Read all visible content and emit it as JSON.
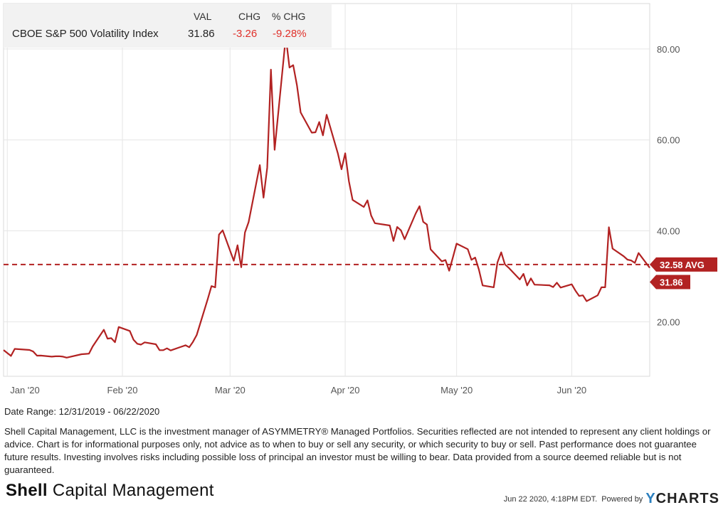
{
  "legend": {
    "headers": {
      "val": "VAL",
      "chg": "CHG",
      "pct_chg": "% CHG"
    },
    "name": "CBOE S&P 500 Volatility Index",
    "val": "31.86",
    "chg": "-3.26",
    "pct_chg": "-9.28%"
  },
  "chart_data": {
    "type": "line",
    "title": "",
    "xlabel": "",
    "ylabel": "",
    "x_ticks": [
      "Jan '20",
      "Feb '20",
      "Mar '20",
      "Apr '20",
      "May '20",
      "Jun '20"
    ],
    "y_ticks": [
      "20.00",
      "40.00",
      "60.00",
      "80.00"
    ],
    "ylim": [
      8,
      90
    ],
    "xlim": [
      "2019-12-31",
      "2020-06-22"
    ],
    "grid": true,
    "average": {
      "value": 32.58,
      "label": "32.58 AVG"
    },
    "last": {
      "value": 31.86,
      "label": "31.86"
    },
    "series": [
      {
        "name": "CBOE S&P 500 Volatility Index",
        "x": [
          "2019-12-31",
          "2020-01-02",
          "2020-01-03",
          "2020-01-06",
          "2020-01-07",
          "2020-01-08",
          "2020-01-09",
          "2020-01-10",
          "2020-01-13",
          "2020-01-14",
          "2020-01-15",
          "2020-01-16",
          "2020-01-17",
          "2020-01-21",
          "2020-01-22",
          "2020-01-23",
          "2020-01-24",
          "2020-01-27",
          "2020-01-28",
          "2020-01-29",
          "2020-01-30",
          "2020-01-31",
          "2020-02-03",
          "2020-02-04",
          "2020-02-05",
          "2020-02-06",
          "2020-02-07",
          "2020-02-10",
          "2020-02-11",
          "2020-02-12",
          "2020-02-13",
          "2020-02-14",
          "2020-02-18",
          "2020-02-19",
          "2020-02-20",
          "2020-02-21",
          "2020-02-24",
          "2020-02-25",
          "2020-02-26",
          "2020-02-27",
          "2020-02-28",
          "2020-03-02",
          "2020-03-03",
          "2020-03-04",
          "2020-03-05",
          "2020-03-06",
          "2020-03-09",
          "2020-03-10",
          "2020-03-11",
          "2020-03-12",
          "2020-03-13",
          "2020-03-16",
          "2020-03-17",
          "2020-03-18",
          "2020-03-19",
          "2020-03-20",
          "2020-03-23",
          "2020-03-24",
          "2020-03-25",
          "2020-03-26",
          "2020-03-27",
          "2020-03-30",
          "2020-03-31",
          "2020-04-01",
          "2020-04-02",
          "2020-04-03",
          "2020-04-06",
          "2020-04-07",
          "2020-04-08",
          "2020-04-09",
          "2020-04-13",
          "2020-04-14",
          "2020-04-15",
          "2020-04-16",
          "2020-04-17",
          "2020-04-20",
          "2020-04-21",
          "2020-04-22",
          "2020-04-23",
          "2020-04-24",
          "2020-04-27",
          "2020-04-28",
          "2020-04-29",
          "2020-04-30",
          "2020-05-01",
          "2020-05-04",
          "2020-05-05",
          "2020-05-06",
          "2020-05-07",
          "2020-05-08",
          "2020-05-11",
          "2020-05-12",
          "2020-05-13",
          "2020-05-14",
          "2020-05-15",
          "2020-05-18",
          "2020-05-19",
          "2020-05-20",
          "2020-05-21",
          "2020-05-22",
          "2020-05-26",
          "2020-05-27",
          "2020-05-28",
          "2020-05-29",
          "2020-06-01",
          "2020-06-02",
          "2020-06-03",
          "2020-06-04",
          "2020-06-05",
          "2020-06-08",
          "2020-06-09",
          "2020-06-10",
          "2020-06-11",
          "2020-06-12",
          "2020-06-15",
          "2020-06-16",
          "2020-06-17",
          "2020-06-18",
          "2020-06-19",
          "2020-06-22"
        ],
        "y": [
          13.78,
          12.47,
          14.02,
          13.85,
          13.79,
          13.45,
          12.54,
          12.56,
          12.32,
          12.39,
          12.42,
          12.32,
          12.1,
          12.85,
          12.91,
          12.98,
          14.56,
          18.23,
          16.28,
          16.39,
          15.49,
          18.84,
          17.97,
          16.05,
          15.15,
          14.96,
          15.47,
          15.04,
          13.74,
          13.74,
          14.15,
          13.68,
          14.83,
          14.38,
          15.56,
          17.08,
          25.03,
          27.85,
          27.56,
          39.16,
          40.11,
          33.42,
          36.82,
          31.99,
          39.62,
          41.94,
          54.46,
          47.3,
          53.9,
          75.47,
          57.83,
          82.69,
          75.91,
          76.45,
          72.0,
          66.04,
          61.59,
          61.67,
          63.95,
          61.0,
          65.54,
          57.08,
          53.54,
          57.06,
          50.91,
          46.8,
          45.24,
          46.7,
          43.35,
          41.67,
          41.17,
          37.76,
          40.84,
          40.11,
          38.15,
          43.83,
          45.41,
          41.98,
          41.38,
          35.93,
          33.29,
          33.57,
          31.23,
          34.15,
          37.19,
          35.97,
          33.61,
          34.12,
          31.44,
          27.98,
          27.57,
          33.04,
          35.28,
          32.61,
          31.89,
          29.3,
          30.53,
          27.99,
          29.53,
          28.16,
          28.01,
          27.62,
          28.59,
          27.51,
          28.23,
          26.84,
          25.66,
          25.81,
          24.52,
          25.81,
          27.57,
          27.57,
          40.79,
          36.09,
          34.4,
          33.67,
          33.47,
          32.94,
          35.12,
          31.86
        ]
      }
    ]
  },
  "colors": {
    "line": "#b22222",
    "grid": "#e6e6e6",
    "negative": "#e0302a"
  },
  "footer": {
    "date_range": "Date Range: 12/31/2019 - 06/22/2020",
    "disclaimer": "Shell Capital Management, LLC is the investment manager of ASYMMETRY® Managed Portfolios. Securities reflected are not intended to represent any client holdings or advice. Chart is for informational purposes only, not advice as to when to buy or sell any security, or which security to buy or sell. Past performance does not guarantee future results. Investing involves risks including possible loss of principal an investor must be willing to bear. Data provided from a source deemed reliable but is not guaranteed.",
    "logo_bold": "Shell",
    "logo_rest": " Capital Management",
    "timestamp": "Jun 22 2020, 4:18PM EDT.",
    "powered_by": "Powered by",
    "brand_y": "Y",
    "brand_rest": "CHARTS"
  }
}
